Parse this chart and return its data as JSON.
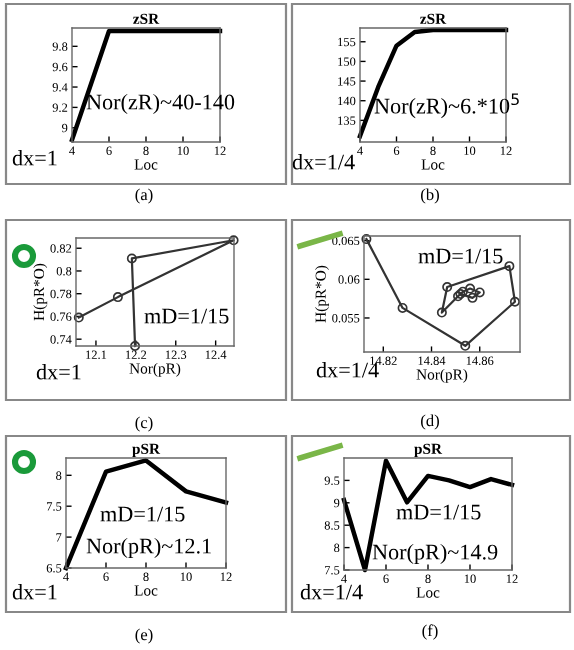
{
  "chart_data": [
    {
      "type": "line",
      "title": "zSR",
      "xlabel": "Loc",
      "x": [
        4,
        6,
        12
      ],
      "series": [
        {
          "color": "#000000",
          "values": [
            8.88,
            9.95,
            9.95
          ]
        }
      ],
      "xlim": [
        4,
        12
      ],
      "ylim": [
        8.86,
        9.98
      ],
      "xticks": [
        4,
        6,
        8,
        10,
        12
      ],
      "yticks": [
        9,
        9.2,
        9.4,
        9.6,
        9.8
      ],
      "grid": false,
      "marker": "none",
      "line_style": "solid",
      "annotations": [
        "Nor(zR)~40-140",
        "dx=1",
        "(a)"
      ]
    },
    {
      "type": "line",
      "title": "zSR",
      "xlabel": "Loc",
      "x": [
        4,
        5,
        6,
        7,
        8,
        12
      ],
      "series": [
        {
          "color": "#000000",
          "values": [
            131,
            143.5,
            154,
            157.5,
            158,
            158
          ]
        }
      ],
      "xlim": [
        4,
        12
      ],
      "ylim": [
        129.5,
        158.5
      ],
      "xticks": [
        4,
        6,
        8,
        10,
        12
      ],
      "yticks": [
        135,
        140,
        145,
        150,
        155
      ],
      "grid": false,
      "marker": "none",
      "line_style": "solid",
      "annotations": [
        "Nor(zR)~6.*10$^{5}$",
        "dx=1/4",
        "(b)"
      ]
    },
    {
      "type": "line",
      "xlabel": "Nor(pR)",
      "ylabel": "H(pR*O)",
      "x": [
        12.057,
        12.155,
        12.445,
        12.19,
        12.198
      ],
      "series": [
        {
          "color": "#333333",
          "values": [
            0.759,
            0.777,
            0.827,
            0.811,
            0.734
          ]
        }
      ],
      "xlim": [
        12.05,
        12.446
      ],
      "ylim": [
        0.734,
        0.829
      ],
      "xticks": [
        12.1,
        12.2,
        12.3,
        12.4
      ],
      "yticks": [
        0.74,
        0.76,
        0.78,
        0.8,
        0.82
      ],
      "grid": false,
      "marker": "circle",
      "line_style": "solid",
      "annotations": [
        "mD=1/15",
        "dx=1",
        "(c)"
      ]
    },
    {
      "type": "line",
      "xlabel": "Nor(pR)",
      "ylabel": "H(pR*O)",
      "x": [
        14.813,
        14.828,
        14.854,
        14.8746,
        14.8723,
        14.8465,
        14.8443,
        14.851,
        14.853,
        14.856,
        14.86,
        14.857,
        14.852
      ],
      "series": [
        {
          "color": "#333333",
          "values": [
            0.0652,
            0.0563,
            0.0514,
            0.0571,
            0.0617,
            0.059,
            0.0557,
            0.0578,
            0.0584,
            0.0588,
            0.0583,
            0.0576,
            0.0581
          ]
        }
      ],
      "xlim": [
        14.812,
        14.8767
      ],
      "ylim": [
        0.0506,
        0.0656
      ],
      "xticks": [
        14.82,
        14.84,
        14.86
      ],
      "yticks": [
        0.055,
        0.06,
        0.065
      ],
      "grid": false,
      "marker": "circle",
      "line_style": "solid",
      "annotations": [
        "mD=1/15",
        "dx=1/4",
        "(d)"
      ]
    },
    {
      "type": "line",
      "title": "pSR",
      "xlabel": "Loc",
      "x": [
        4,
        6,
        8,
        10,
        12
      ],
      "series": [
        {
          "color": "#000000",
          "values": [
            6.5,
            8.06,
            8.24,
            7.74,
            7.56
          ]
        }
      ],
      "xlim": [
        4,
        12
      ],
      "ylim": [
        6.5,
        8.28
      ],
      "xticks": [
        4,
        6,
        8,
        10,
        12
      ],
      "yticks": [
        6.5,
        7,
        7.5,
        8
      ],
      "grid": false,
      "marker": "none",
      "line_style": "solid",
      "annotations": [
        "mD=1/15",
        "Nor(pR)~12.1",
        "dx=1",
        "(e)"
      ]
    },
    {
      "type": "line",
      "title": "pSR",
      "xlabel": "Loc",
      "x": [
        4,
        5,
        6,
        7,
        8,
        9,
        10,
        11,
        12
      ],
      "series": [
        {
          "color": "#000000",
          "values": [
            9.06,
            7.5,
            9.94,
            9.01,
            9.6,
            9.5,
            9.35,
            9.53,
            9.4
          ]
        }
      ],
      "xlim": [
        4,
        12
      ],
      "ylim": [
        7.5,
        10
      ],
      "xticks": [
        4,
        6,
        8,
        10,
        12
      ],
      "yticks": [
        7.5,
        8,
        8.5,
        9,
        9.5
      ],
      "grid": false,
      "marker": "none",
      "line_style": "solid",
      "annotations": [
        "mD=1/15",
        "Nor(pR)~14.9",
        "dx=1/4",
        "(f)"
      ]
    }
  ]
}
